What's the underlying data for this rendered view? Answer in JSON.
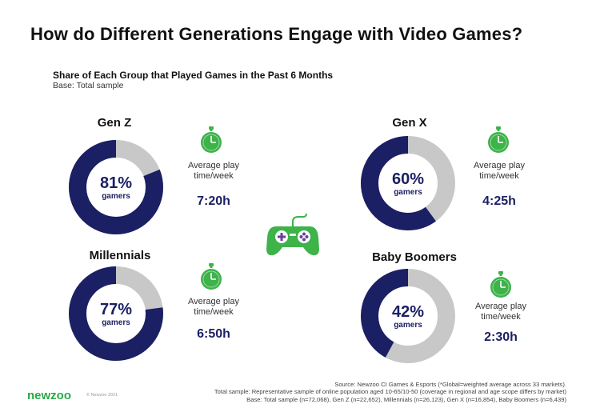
{
  "title": "How do Different Generations Engage with Video Games?",
  "subtitle": "Share of Each Group that Played Games in the Past 6 Months",
  "base": "Base: Total sample",
  "colors": {
    "filled": "#1b1f63",
    "remainder": "#c8c8c8",
    "accent": "#2aa84a",
    "timer": "#3db34a"
  },
  "chart_data": [
    {
      "type": "pie",
      "title": "Gen Z",
      "value_pct": 81,
      "value_label": "81%",
      "center_label": "gamers",
      "play_label": "Average play time/week",
      "play_line1": "Average play",
      "play_line2": "time/week",
      "play_time": "7:20h"
    },
    {
      "type": "pie",
      "title": "Gen X",
      "value_pct": 60,
      "value_label": "60%",
      "center_label": "gamers",
      "play_label": "Average play time/week",
      "play_line1": "Average play",
      "play_line2": "time/week",
      "play_time": "4:25h"
    },
    {
      "type": "pie",
      "title": "Millennials",
      "value_pct": 77,
      "value_label": "77%",
      "center_label": "gamers",
      "play_label": "Average play time/week",
      "play_line1": "Average play",
      "play_line2": "time/week",
      "play_time": "6:50h"
    },
    {
      "type": "pie",
      "title": "Baby Boomers",
      "value_pct": 42,
      "value_label": "42%",
      "center_label": "gamers",
      "play_label": "Average play time/week",
      "play_line1": "Average play",
      "play_line2": "time/week",
      "play_time": "2:30h"
    }
  ],
  "icons": {
    "timer": "stopwatch-icon",
    "controller": "game-controller-icon"
  },
  "source_lines": [
    "Source: Newzoo CI Games & Esports (*Global=weighted average across 33 markets).",
    "Total sample: Representative sample of online population aged 10-65/10-50 (coverage in regional and age scope differs by market)",
    "Base: Total sample (n=72,068), Gen Z (n=22,652), Millennials (n=26,123), Gen X (n=16,854), Baby Boomers (n=6,439)"
  ],
  "logo": "newzoo",
  "copyright": "© Newzoo 2021"
}
